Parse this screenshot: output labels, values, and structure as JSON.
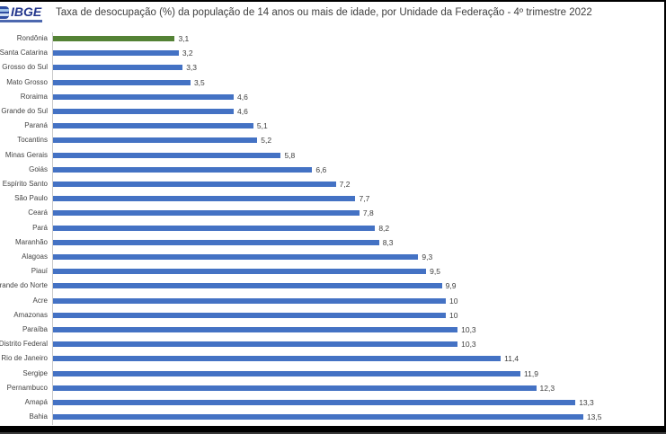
{
  "page": {
    "background": "#ffffff",
    "frame_color": "#000000"
  },
  "header": {
    "logo": {
      "text": "IBGE",
      "color": "#23368C",
      "icon": "ibge-logo-icon"
    },
    "title": "Taxa de desocupação (%) da população de 14 anos ou mais de idade, por Unidade da Federação - 4º trimestre 2022"
  },
  "chart_data": {
    "type": "bar",
    "orientation": "horizontal",
    "title": "Taxa de desocupação (%) da população de 14 anos ou mais de idade, por Unidade da Federação - 4º trimestre 2022",
    "categories": [
      "Rondônia",
      "Santa Catarina",
      "Mato Grosso do Sul",
      "Mato Grosso",
      "Roraima",
      "Rio Grande do Sul",
      "Paraná",
      "Tocantins",
      "Minas Gerais",
      "Goiás",
      "Espírito Santo",
      "São Paulo",
      "Ceará",
      "Pará",
      "Maranhão",
      "Alagoas",
      "Piauí",
      "Rio Grande do Norte",
      "Acre",
      "Amazonas",
      "Paraíba",
      "Distrito Federal",
      "Rio de Janeiro",
      "Sergipe",
      "Pernambuco",
      "Amapá",
      "Bahia"
    ],
    "values": [
      3.1,
      3.2,
      3.3,
      3.5,
      4.6,
      4.6,
      5.1,
      5.2,
      5.8,
      6.6,
      7.2,
      7.7,
      7.8,
      8.2,
      8.3,
      9.3,
      9.5,
      9.9,
      10,
      10,
      10.3,
      10.3,
      11.4,
      11.9,
      12.3,
      13.3,
      13.5
    ],
    "value_labels": [
      "3,1",
      "3,2",
      "3,3",
      "3,5",
      "4,6",
      "4,6",
      "5,1",
      "5,2",
      "5,8",
      "6,6",
      "7,2",
      "7,7",
      "7,8",
      "8,2",
      "8,3",
      "9,3",
      "9,5",
      "9,9",
      "10",
      "10",
      "10,3",
      "10,3",
      "11,4",
      "11,9",
      "12,3",
      "13,3",
      "13,5"
    ],
    "xlim": [
      0,
      14
    ],
    "grid": false,
    "legend": false,
    "sort_order": "ascending",
    "bar_color": "#4472C4",
    "highlight": {
      "index": 0,
      "category": "Rondônia",
      "color": "#548235"
    },
    "axis_color": "#C9C9C9",
    "label_color": "#444444",
    "value_label_color": "#404040"
  }
}
